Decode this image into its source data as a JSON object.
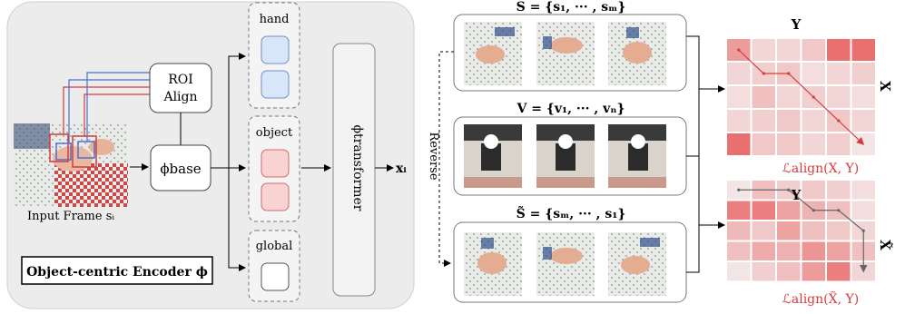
{
  "encoder": {
    "title": "Object-centric Encoder ϕ",
    "input_label": "Input Frame sᵢ",
    "roi_label_line1": "ROI",
    "roi_label_line2": "Align",
    "base_label": "ϕbase",
    "transformer_label": "ϕtransformer",
    "output_label": "xᵢ",
    "tokens": [
      {
        "label": "hand",
        "color": "#d9e6fa",
        "border": "#6f8fc7"
      },
      {
        "label": "object",
        "color": "#f9d3d3",
        "border": "#d46a6a"
      },
      {
        "label": "global",
        "color": "#ffffff",
        "border": "#555555"
      }
    ],
    "box_colors": {
      "blue": "#4a6fd1",
      "red": "#d63b3b"
    }
  },
  "sequences": {
    "top_label": "S = {s₁, ··· , sₘ}",
    "mid_label": "V = {v₁, ··· , vₙ}",
    "bottom_label": "S̃ = {sₘ, ··· , s₁}",
    "reverse_label": "Reverse"
  },
  "alignment": {
    "top": {
      "col_label": "Y",
      "row_label": "X",
      "loss_label": "ℒalign(X, Y)",
      "cells": [
        [
          0.55,
          0.15,
          0.15,
          0.25,
          0.85,
          0.85
        ],
        [
          0.15,
          0.2,
          0.25,
          0.1,
          0.15,
          0.2
        ],
        [
          0.1,
          0.3,
          0.15,
          0.2,
          0.15,
          0.1
        ],
        [
          0.15,
          0.2,
          0.25,
          0.15,
          0.25,
          0.15
        ],
        [
          0.85,
          0.25,
          0.25,
          0.15,
          0.2,
          0.05
        ]
      ],
      "path": [
        [
          0.5,
          0.5
        ],
        [
          1.5,
          1.5
        ],
        [
          2.5,
          1.5
        ],
        [
          3.5,
          2.5
        ],
        [
          4.5,
          3.5
        ],
        [
          5.5,
          4.5
        ]
      ]
    },
    "bottom": {
      "col_label": "Y",
      "row_label": "X̃",
      "loss_label": "ℒalign(X̃, Y)",
      "cells": [
        [
          0.05,
          0.3,
          0.2,
          0.25,
          0.2,
          0.1
        ],
        [
          0.75,
          0.75,
          0.5,
          0.4,
          0.3,
          0.1
        ],
        [
          0.35,
          0.25,
          0.5,
          0.3,
          0.25,
          0.15
        ],
        [
          0.3,
          0.45,
          0.4,
          0.6,
          0.5,
          0.3
        ],
        [
          0.05,
          0.2,
          0.3,
          0.55,
          0.75,
          0.15
        ]
      ],
      "path": [
        [
          0.5,
          0.5
        ],
        [
          2.5,
          0.5
        ],
        [
          3.5,
          1.5
        ],
        [
          4.5,
          1.5
        ],
        [
          5.5,
          2.5
        ],
        [
          5.5,
          4.5
        ]
      ]
    }
  }
}
